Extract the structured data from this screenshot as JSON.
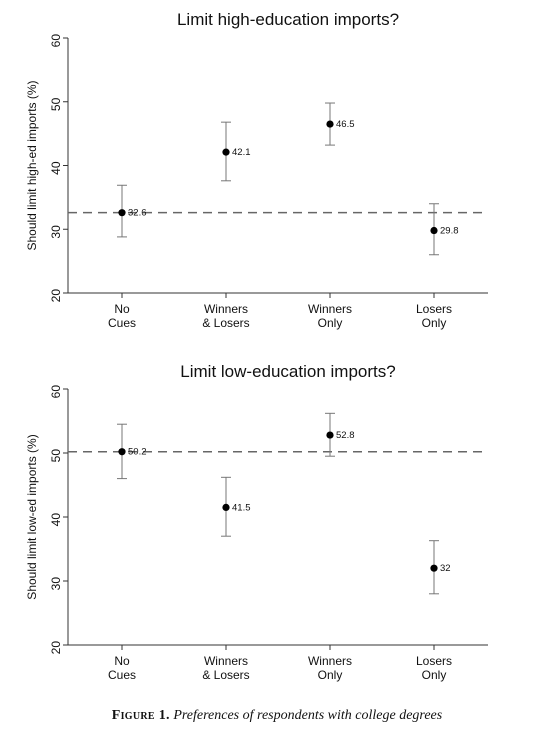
{
  "chart_data": [
    {
      "type": "scatter",
      "title": "Limit high-education imports?",
      "ylabel": "Should limit high-ed imports (%)",
      "xlabel": "",
      "ylim": [
        20,
        60
      ],
      "yticks": [
        20,
        30,
        40,
        50,
        60
      ],
      "categories": [
        [
          "No",
          "Cues"
        ],
        [
          "Winners",
          "& Losers"
        ],
        [
          "Winners",
          "Only"
        ],
        [
          "Losers",
          "Only"
        ]
      ],
      "values": [
        32.6,
        42.1,
        46.5,
        29.8
      ],
      "value_labels": [
        "32.6",
        "42.1",
        "46.5",
        "29.8"
      ],
      "ci_low": [
        28.8,
        37.6,
        43.2,
        26.0
      ],
      "ci_high": [
        36.9,
        46.8,
        49.8,
        34.0
      ],
      "reference_line": 32.6,
      "grid": false
    },
    {
      "type": "scatter",
      "title": "Limit low-education imports?",
      "ylabel": "Should limit low-ed imports (%)",
      "xlabel": "",
      "ylim": [
        20,
        60
      ],
      "yticks": [
        20,
        30,
        40,
        50,
        60
      ],
      "categories": [
        [
          "No",
          "Cues"
        ],
        [
          "Winners",
          "& Losers"
        ],
        [
          "Winners",
          "Only"
        ],
        [
          "Losers",
          "Only"
        ]
      ],
      "values": [
        50.2,
        41.5,
        52.8,
        32
      ],
      "value_labels": [
        "50.2",
        "41.5",
        "52.8",
        "32"
      ],
      "ci_low": [
        46.0,
        37.0,
        49.5,
        28.0
      ],
      "ci_high": [
        54.5,
        46.2,
        56.2,
        36.3
      ],
      "reference_line": 50.2,
      "grid": false
    }
  ],
  "caption": {
    "label": "Figure 1.",
    "text": "Preferences of respondents with college degrees"
  }
}
